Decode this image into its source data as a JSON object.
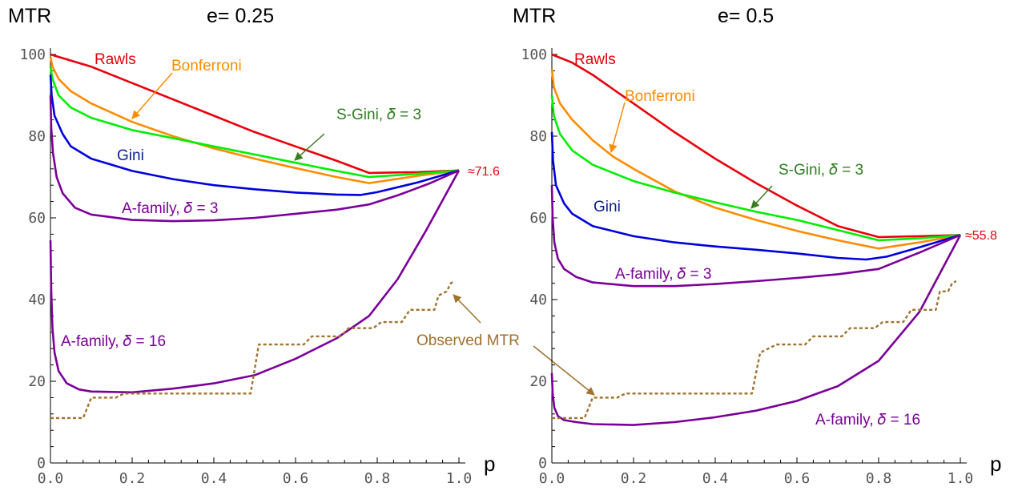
{
  "chart_data": [
    {
      "type": "line",
      "mtr_label": "MTR",
      "title": "e= 0.25",
      "xlabel": "p",
      "xlim": [
        0,
        1
      ],
      "ylim": [
        0,
        100
      ],
      "x_ticks": [
        "0.0",
        "0.2",
        "0.4",
        "0.6",
        "0.8",
        "1.0"
      ],
      "y_ticks": [
        "0",
        "20",
        "40",
        "60",
        "80",
        "100"
      ],
      "end_label": "≈71.6",
      "series": [
        {
          "name": "Rawls",
          "color": "#e8000b",
          "points": [
            [
              0,
              100
            ],
            [
              0.1,
              97
            ],
            [
              0.2,
              93
            ],
            [
              0.3,
              89
            ],
            [
              0.4,
              85
            ],
            [
              0.5,
              81
            ],
            [
              0.6,
              77.5
            ],
            [
              0.7,
              74
            ],
            [
              0.78,
              71
            ],
            [
              0.9,
              71.2
            ],
            [
              1,
              71.6
            ]
          ]
        },
        {
          "name": "Bonferroni",
          "color": "#ff8c00",
          "points": [
            [
              0,
              99.5
            ],
            [
              0.005,
              97
            ],
            [
              0.02,
              94
            ],
            [
              0.05,
              91
            ],
            [
              0.1,
              88
            ],
            [
              0.2,
              83.5
            ],
            [
              0.3,
              80
            ],
            [
              0.4,
              77
            ],
            [
              0.5,
              74.5
            ],
            [
              0.6,
              72.2
            ],
            [
              0.7,
              70
            ],
            [
              0.78,
              68.5
            ],
            [
              0.9,
              70.3
            ],
            [
              1,
              71.6
            ]
          ]
        },
        {
          "name": "S-Gini, 𝛿 = 3",
          "color": "#00ee00",
          "points": [
            [
              0,
              97
            ],
            [
              0.005,
              94
            ],
            [
              0.02,
              90
            ],
            [
              0.05,
              87
            ],
            [
              0.1,
              84.5
            ],
            [
              0.2,
              81.5
            ],
            [
              0.3,
              79.5
            ],
            [
              0.4,
              77.5
            ],
            [
              0.5,
              75.5
            ],
            [
              0.6,
              73.5
            ],
            [
              0.7,
              71.5
            ],
            [
              0.78,
              70
            ],
            [
              0.9,
              70.8
            ],
            [
              1,
              71.6
            ]
          ]
        },
        {
          "name": "Gini",
          "color": "#0000dd",
          "points": [
            [
              0,
              95
            ],
            [
              0.003,
              90
            ],
            [
              0.01,
              85
            ],
            [
              0.03,
              80.5
            ],
            [
              0.05,
              77.5
            ],
            [
              0.1,
              74.5
            ],
            [
              0.2,
              71.5
            ],
            [
              0.3,
              69.5
            ],
            [
              0.4,
              68
            ],
            [
              0.5,
              67
            ],
            [
              0.6,
              66.2
            ],
            [
              0.7,
              65.7
            ],
            [
              0.76,
              65.6
            ],
            [
              0.8,
              66.3
            ],
            [
              0.9,
              68.7
            ],
            [
              1,
              71.6
            ]
          ]
        },
        {
          "name": "A-family, 𝛿 = 3",
          "color": "#7b0099",
          "points": [
            [
              0,
              90
            ],
            [
              0.002,
              82
            ],
            [
              0.006,
              76
            ],
            [
              0.015,
              70
            ],
            [
              0.03,
              66
            ],
            [
              0.06,
              62.5
            ],
            [
              0.1,
              60.8
            ],
            [
              0.2,
              59.5
            ],
            [
              0.3,
              59.2
            ],
            [
              0.4,
              59.4
            ],
            [
              0.5,
              60
            ],
            [
              0.6,
              61
            ],
            [
              0.7,
              62
            ],
            [
              0.78,
              63.3
            ],
            [
              0.85,
              65.5
            ],
            [
              0.93,
              68.5
            ],
            [
              1,
              71.6
            ]
          ]
        },
        {
          "name": "A-family, 𝛿 = 16",
          "color": "#7b0099",
          "points": [
            [
              0,
              54.5
            ],
            [
              0.002,
              42
            ],
            [
              0.005,
              33
            ],
            [
              0.01,
              27
            ],
            [
              0.02,
              22.5
            ],
            [
              0.04,
              19.5
            ],
            [
              0.07,
              18
            ],
            [
              0.1,
              17.5
            ],
            [
              0.2,
              17.3
            ],
            [
              0.3,
              18.2
            ],
            [
              0.4,
              19.5
            ],
            [
              0.5,
              21.5
            ],
            [
              0.6,
              25.5
            ],
            [
              0.7,
              30.5
            ],
            [
              0.78,
              36
            ],
            [
              0.85,
              45
            ],
            [
              0.92,
              57
            ],
            [
              1,
              71.6
            ]
          ]
        },
        {
          "name": "Observed MTR",
          "color": "#a0722d",
          "dashed": true,
          "points": [
            [
              0,
              11
            ],
            [
              0.08,
              11
            ],
            [
              0.1,
              16
            ],
            [
              0.16,
              16
            ],
            [
              0.18,
              17
            ],
            [
              0.49,
              17
            ],
            [
              0.51,
              29
            ],
            [
              0.62,
              29
            ],
            [
              0.64,
              31
            ],
            [
              0.71,
              31
            ],
            [
              0.73,
              33
            ],
            [
              0.79,
              33
            ],
            [
              0.81,
              34.5
            ],
            [
              0.86,
              34.5
            ],
            [
              0.88,
              37.5
            ],
            [
              0.94,
              37.5
            ],
            [
              0.95,
              41
            ],
            [
              0.97,
              42
            ],
            [
              0.98,
              44
            ],
            [
              0.99,
              44.5
            ]
          ]
        }
      ],
      "labels": [
        {
          "key": "Rawls",
          "text": "Rawls",
          "color": "#e8000b"
        },
        {
          "key": "Bonferroni",
          "text": "Bonferroni",
          "color": "#ff8c00"
        },
        {
          "key": "S-Gini",
          "text": "S-Gini, 𝛿 = 3",
          "color": "#2e7d1f"
        },
        {
          "key": "Gini",
          "text": "Gini",
          "color": "#0a1f8f"
        },
        {
          "key": "A3",
          "text": "A-family, 𝛿 = 3",
          "color": "#7b0099"
        },
        {
          "key": "A16",
          "text": "A-family, 𝛿 = 16",
          "color": "#7b0099"
        },
        {
          "key": "Obs",
          "text": "Observed MTR",
          "color": "#a0722d"
        }
      ]
    },
    {
      "type": "line",
      "mtr_label": "MTR",
      "title": "e= 0.5",
      "xlabel": "p",
      "xlim": [
        0,
        1
      ],
      "ylim": [
        0,
        100
      ],
      "x_ticks": [
        "0.0",
        "0.2",
        "0.4",
        "0.6",
        "0.8",
        "1.0"
      ],
      "y_ticks": [
        "0",
        "20",
        "40",
        "60",
        "80",
        "100"
      ],
      "end_label": "≈55.8",
      "series": [
        {
          "name": "Rawls",
          "color": "#e8000b",
          "points": [
            [
              0,
              100
            ],
            [
              0.05,
              98
            ],
            [
              0.1,
              95
            ],
            [
              0.2,
              88
            ],
            [
              0.3,
              81
            ],
            [
              0.4,
              74.5
            ],
            [
              0.5,
              68.5
            ],
            [
              0.6,
              63
            ],
            [
              0.7,
              58
            ],
            [
              0.8,
              55.3
            ],
            [
              0.9,
              55.5
            ],
            [
              1,
              55.8
            ]
          ]
        },
        {
          "name": "Bonferroni",
          "color": "#ff8c00",
          "points": [
            [
              0,
              96.5
            ],
            [
              0.005,
              92
            ],
            [
              0.02,
              88
            ],
            [
              0.05,
              84
            ],
            [
              0.1,
              79
            ],
            [
              0.15,
              75
            ],
            [
              0.2,
              72
            ],
            [
              0.3,
              66.5
            ],
            [
              0.4,
              62.5
            ],
            [
              0.5,
              59.5
            ],
            [
              0.6,
              56.8
            ],
            [
              0.7,
              54.5
            ],
            [
              0.8,
              52.5
            ],
            [
              0.9,
              54
            ],
            [
              1,
              55.8
            ]
          ]
        },
        {
          "name": "S-Gini, 𝛿 = 3",
          "color": "#00ee00",
          "points": [
            [
              0,
              90
            ],
            [
              0.005,
              85
            ],
            [
              0.02,
              80.5
            ],
            [
              0.05,
              76.5
            ],
            [
              0.1,
              73
            ],
            [
              0.2,
              69
            ],
            [
              0.3,
              66.2
            ],
            [
              0.4,
              63.8
            ],
            [
              0.5,
              61.5
            ],
            [
              0.6,
              59.5
            ],
            [
              0.7,
              57
            ],
            [
              0.8,
              54.5
            ],
            [
              0.9,
              55
            ],
            [
              1,
              55.8
            ]
          ]
        },
        {
          "name": "Gini",
          "color": "#0000dd",
          "points": [
            [
              0,
              81
            ],
            [
              0.003,
              74
            ],
            [
              0.01,
              68
            ],
            [
              0.03,
              63.5
            ],
            [
              0.05,
              61
            ],
            [
              0.1,
              58
            ],
            [
              0.2,
              55.5
            ],
            [
              0.3,
              54
            ],
            [
              0.4,
              53
            ],
            [
              0.5,
              52.2
            ],
            [
              0.6,
              51.3
            ],
            [
              0.7,
              50.2
            ],
            [
              0.77,
              49.8
            ],
            [
              0.82,
              50.5
            ],
            [
              0.9,
              52.8
            ],
            [
              1,
              55.8
            ]
          ]
        },
        {
          "name": "A-family, 𝛿 = 3",
          "color": "#7b0099",
          "points": [
            [
              0,
              68
            ],
            [
              0.002,
              60
            ],
            [
              0.006,
              54
            ],
            [
              0.015,
              50
            ],
            [
              0.03,
              47.5
            ],
            [
              0.06,
              45.5
            ],
            [
              0.1,
              44.2
            ],
            [
              0.2,
              43.3
            ],
            [
              0.3,
              43.3
            ],
            [
              0.4,
              43.8
            ],
            [
              0.5,
              44.5
            ],
            [
              0.6,
              45.3
            ],
            [
              0.7,
              46.2
            ],
            [
              0.8,
              47.5
            ],
            [
              0.9,
              51.5
            ],
            [
              1,
              55.8
            ]
          ]
        },
        {
          "name": "A-family, 𝛿 = 16",
          "color": "#7b0099",
          "points": [
            [
              0,
              22
            ],
            [
              0.002,
              17
            ],
            [
              0.006,
              13.5
            ],
            [
              0.015,
              11.5
            ],
            [
              0.03,
              10.5
            ],
            [
              0.06,
              10
            ],
            [
              0.1,
              9.5
            ],
            [
              0.2,
              9.3
            ],
            [
              0.3,
              10
            ],
            [
              0.4,
              11.2
            ],
            [
              0.5,
              12.8
            ],
            [
              0.6,
              15.2
            ],
            [
              0.7,
              18.8
            ],
            [
              0.8,
              25
            ],
            [
              0.9,
              37
            ],
            [
              1,
              55.8
            ]
          ]
        },
        {
          "name": "Observed MTR",
          "color": "#a0722d",
          "dashed": true,
          "points": [
            [
              0,
              11
            ],
            [
              0.08,
              11
            ],
            [
              0.1,
              16
            ],
            [
              0.16,
              16
            ],
            [
              0.18,
              17
            ],
            [
              0.49,
              17
            ],
            [
              0.51,
              27
            ],
            [
              0.55,
              29
            ],
            [
              0.62,
              29
            ],
            [
              0.64,
              31
            ],
            [
              0.71,
              31
            ],
            [
              0.73,
              33
            ],
            [
              0.79,
              33
            ],
            [
              0.81,
              34.5
            ],
            [
              0.86,
              34.5
            ],
            [
              0.88,
              37.5
            ],
            [
              0.94,
              37.5
            ],
            [
              0.95,
              42
            ],
            [
              0.97,
              42
            ],
            [
              0.98,
              44
            ],
            [
              0.99,
              44.5
            ]
          ]
        }
      ],
      "labels": [
        {
          "key": "Rawls",
          "text": "Rawls",
          "color": "#e8000b"
        },
        {
          "key": "Bonferroni",
          "text": "Bonferroni",
          "color": "#ff8c00"
        },
        {
          "key": "S-Gini",
          "text": "S-Gini, 𝛿 = 3",
          "color": "#2e7d1f"
        },
        {
          "key": "Gini",
          "text": "Gini",
          "color": "#0a1f8f"
        },
        {
          "key": "A3",
          "text": "A-family, 𝛿 = 3",
          "color": "#7b0099"
        },
        {
          "key": "A16",
          "text": "A-family, 𝛿 = 16",
          "color": "#7b0099"
        }
      ]
    }
  ]
}
